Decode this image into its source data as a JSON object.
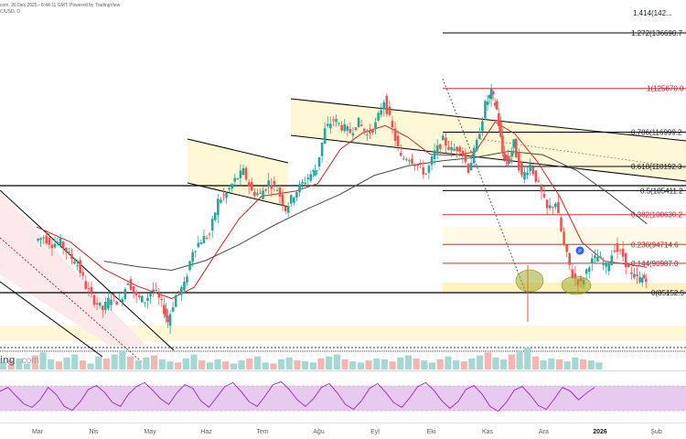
{
  "header": {
    "line1": "com, 26 Dec 2025 - 8:44:11 GMT, Powered by TradingView",
    "line2": "C/USD, D"
  },
  "watermark": {
    "prefix": "ing",
    "suffix": ".com"
  },
  "marker_badge": "P",
  "colors": {
    "candle_up": "#26a69a",
    "candle_down": "#ef5350",
    "ma_fast": "#c62828",
    "ma_slow": "#4a4a4a",
    "fib_red": "#d32f2f",
    "fib_black": "#000000",
    "zone_fill": "#fff8d6",
    "rsi_fill": "#e8c9ef",
    "rsi_line": "#9c27b0"
  },
  "chart_data": {
    "type": "candlestick",
    "title": "",
    "xlabel": "",
    "ylabel": "",
    "x_ticks": [
      "Mar",
      "Nis",
      "May",
      "Haz",
      "Tem",
      "Ağu",
      "Eyl",
      "Eki",
      "Kas",
      "Ara",
      "2026",
      "Şub"
    ],
    "ylim": [
      72000,
      142000
    ],
    "fib_levels": [
      {
        "ratio": "1.272",
        "value": 136690.7,
        "label": "1.272(136690.7",
        "color": "black"
      },
      {
        "ratio": "1",
        "value": 125670.0,
        "label": "1(125670.0",
        "color": "red"
      },
      {
        "ratio": "0.786",
        "value": 116999.2,
        "label": "0.786(116999.2",
        "color": "black"
      },
      {
        "ratio": "0.618",
        "value": 110192.3,
        "label": "0.618(110192.3",
        "color": "black"
      },
      {
        "ratio": "0.5",
        "value": 105411.2,
        "label": "0.5(105411.2",
        "color": "black"
      },
      {
        "ratio": "0.382",
        "value": 100630.2,
        "label": "0.382(100630.2",
        "color": "red"
      },
      {
        "ratio": "0.236",
        "value": 94714.6,
        "label": "0.236(94714.6",
        "color": "red"
      },
      {
        "ratio": "0.144",
        "value": 90987.0,
        "label": "0.144(90987.0",
        "color": "red"
      },
      {
        "ratio": "0",
        "value": 85152.5,
        "label": "0(85152.5",
        "color": "black"
      }
    ],
    "top_partial_label": "1.414(142...",
    "horizontal_supports": [
      102450,
      83700
    ],
    "price_series": [
      {
        "m": 0.0,
        "v": 95500
      },
      {
        "m": 0.15,
        "v": 96200
      },
      {
        "m": 0.3,
        "v": 94800
      },
      {
        "m": 0.45,
        "v": 95200
      },
      {
        "m": 0.6,
        "v": 92600
      },
      {
        "m": 0.75,
        "v": 90800
      },
      {
        "m": 0.9,
        "v": 86400
      },
      {
        "m": 1.05,
        "v": 83600
      },
      {
        "m": 1.2,
        "v": 81800
      },
      {
        "m": 1.35,
        "v": 84400
      },
      {
        "m": 1.5,
        "v": 83200
      },
      {
        "m": 1.65,
        "v": 87600
      },
      {
        "m": 1.8,
        "v": 84200
      },
      {
        "m": 1.95,
        "v": 83600
      },
      {
        "m": 2.1,
        "v": 85800
      },
      {
        "m": 2.25,
        "v": 82800
      },
      {
        "m": 2.35,
        "v": 79400
      },
      {
        "m": 2.5,
        "v": 84600
      },
      {
        "m": 2.65,
        "v": 86600
      },
      {
        "m": 2.8,
        "v": 93600
      },
      {
        "m": 2.95,
        "v": 95600
      },
      {
        "m": 3.1,
        "v": 96800
      },
      {
        "m": 3.25,
        "v": 103400
      },
      {
        "m": 3.4,
        "v": 104800
      },
      {
        "m": 3.55,
        "v": 107500
      },
      {
        "m": 3.7,
        "v": 109200
      },
      {
        "m": 3.85,
        "v": 105200
      },
      {
        "m": 4.0,
        "v": 104600
      },
      {
        "m": 4.15,
        "v": 107100
      },
      {
        "m": 4.3,
        "v": 105800
      },
      {
        "m": 4.45,
        "v": 101800
      },
      {
        "m": 4.6,
        "v": 104700
      },
      {
        "m": 4.75,
        "v": 106800
      },
      {
        "m": 4.9,
        "v": 108700
      },
      {
        "m": 5.0,
        "v": 109800
      },
      {
        "m": 5.15,
        "v": 117400
      },
      {
        "m": 5.3,
        "v": 119600
      },
      {
        "m": 5.45,
        "v": 118100
      },
      {
        "m": 5.6,
        "v": 117000
      },
      {
        "m": 5.75,
        "v": 119000
      },
      {
        "m": 5.9,
        "v": 116400
      },
      {
        "m": 6.05,
        "v": 118500
      },
      {
        "m": 6.2,
        "v": 123400
      },
      {
        "m": 6.35,
        "v": 117600
      },
      {
        "m": 6.5,
        "v": 111800
      },
      {
        "m": 6.65,
        "v": 112000
      },
      {
        "m": 6.8,
        "v": 110300
      },
      {
        "m": 6.95,
        "v": 108700
      },
      {
        "m": 7.1,
        "v": 112900
      },
      {
        "m": 7.25,
        "v": 115400
      },
      {
        "m": 7.4,
        "v": 113400
      },
      {
        "m": 7.55,
        "v": 114000
      },
      {
        "m": 7.7,
        "v": 109600
      },
      {
        "m": 7.85,
        "v": 114800
      },
      {
        "m": 8.0,
        "v": 122400
      },
      {
        "m": 8.1,
        "v": 124800
      },
      {
        "m": 8.2,
        "v": 121400
      },
      {
        "m": 8.3,
        "v": 112800
      },
      {
        "m": 8.4,
        "v": 110800
      },
      {
        "m": 8.5,
        "v": 114800
      },
      {
        "m": 8.65,
        "v": 108000
      },
      {
        "m": 8.8,
        "v": 110600
      },
      {
        "m": 8.95,
        "v": 106400
      },
      {
        "m": 9.1,
        "v": 101600
      },
      {
        "m": 9.25,
        "v": 103100
      },
      {
        "m": 9.4,
        "v": 94400
      },
      {
        "m": 9.55,
        "v": 88500
      },
      {
        "m": 9.7,
        "v": 86800
      },
      {
        "m": 9.85,
        "v": 91000
      },
      {
        "m": 10.0,
        "v": 92200
      },
      {
        "m": 10.15,
        "v": 90200
      },
      {
        "m": 10.3,
        "v": 94100
      },
      {
        "m": 10.45,
        "v": 92400
      },
      {
        "m": 10.6,
        "v": 88400
      },
      {
        "m": 10.75,
        "v": 87800
      },
      {
        "m": 10.85,
        "v": 88200
      }
    ],
    "ma_fast_series": [
      {
        "m": 0.0,
        "v": 98200
      },
      {
        "m": 0.6,
        "v": 95200
      },
      {
        "m": 1.2,
        "v": 89800
      },
      {
        "m": 1.8,
        "v": 86400
      },
      {
        "m": 2.4,
        "v": 84000
      },
      {
        "m": 2.8,
        "v": 86200
      },
      {
        "m": 3.2,
        "v": 93100
      },
      {
        "m": 3.6,
        "v": 99800
      },
      {
        "m": 4.0,
        "v": 104300
      },
      {
        "m": 4.6,
        "v": 105300
      },
      {
        "m": 5.0,
        "v": 106800
      },
      {
        "m": 5.4,
        "v": 113600
      },
      {
        "m": 5.8,
        "v": 116900
      },
      {
        "m": 6.2,
        "v": 118300
      },
      {
        "m": 6.6,
        "v": 116000
      },
      {
        "m": 7.0,
        "v": 112600
      },
      {
        "m": 7.4,
        "v": 112400
      },
      {
        "m": 7.8,
        "v": 113100
      },
      {
        "m": 8.15,
        "v": 119000
      },
      {
        "m": 8.5,
        "v": 116700
      },
      {
        "m": 8.9,
        "v": 111200
      },
      {
        "m": 9.3,
        "v": 104200
      },
      {
        "m": 9.7,
        "v": 95100
      },
      {
        "m": 10.1,
        "v": 91400
      },
      {
        "m": 10.5,
        "v": 90800
      },
      {
        "m": 10.85,
        "v": 90200
      }
    ],
    "ma_slow_series": [
      {
        "m": 1.2,
        "v": 91400
      },
      {
        "m": 1.8,
        "v": 90300
      },
      {
        "m": 2.4,
        "v": 89600
      },
      {
        "m": 3.0,
        "v": 91500
      },
      {
        "m": 3.6,
        "v": 94700
      },
      {
        "m": 4.2,
        "v": 98400
      },
      {
        "m": 4.8,
        "v": 101700
      },
      {
        "m": 5.4,
        "v": 104700
      },
      {
        "m": 6.0,
        "v": 108400
      },
      {
        "m": 6.6,
        "v": 110300
      },
      {
        "m": 7.2,
        "v": 111300
      },
      {
        "m": 7.8,
        "v": 112000
      },
      {
        "m": 8.4,
        "v": 113200
      },
      {
        "m": 9.0,
        "v": 112500
      },
      {
        "m": 9.6,
        "v": 109400
      },
      {
        "m": 10.2,
        "v": 104600
      },
      {
        "m": 10.85,
        "v": 98800
      }
    ],
    "volume_series": [
      14,
      18,
      22,
      12,
      28,
      34,
      20,
      16,
      24,
      30,
      18,
      12,
      26,
      22,
      30,
      38,
      26,
      18,
      24,
      28,
      20,
      16,
      14,
      22,
      30,
      18,
      14,
      20,
      16,
      12,
      18,
      22,
      26,
      14,
      12,
      20,
      24,
      18,
      16,
      14,
      22,
      26,
      30,
      20,
      16,
      14,
      18,
      22,
      20,
      16,
      24,
      28,
      22,
      18,
      14,
      20,
      26,
      18,
      16,
      22,
      28,
      34,
      24,
      20,
      30,
      38,
      44,
      26,
      18,
      22,
      20,
      16,
      24,
      20,
      18,
      14
    ],
    "rsi_series": [
      62,
      70,
      52,
      35,
      28,
      44,
      70,
      55,
      30,
      22,
      40,
      66,
      74,
      60,
      38,
      30,
      56,
      72,
      80,
      64,
      46,
      34,
      58,
      76,
      68,
      42,
      28,
      50,
      72,
      80,
      62,
      40,
      30,
      52,
      76,
      82,
      66,
      44,
      30,
      46,
      70,
      78,
      58,
      34,
      24,
      42,
      68,
      78,
      60,
      38,
      28,
      48,
      72,
      80,
      64,
      42,
      26,
      40,
      66,
      74,
      56,
      30,
      20,
      38,
      64,
      72,
      54,
      32,
      24,
      46,
      70,
      62,
      44,
      58,
      70
    ],
    "rsi_band": [
      20,
      80
    ]
  }
}
